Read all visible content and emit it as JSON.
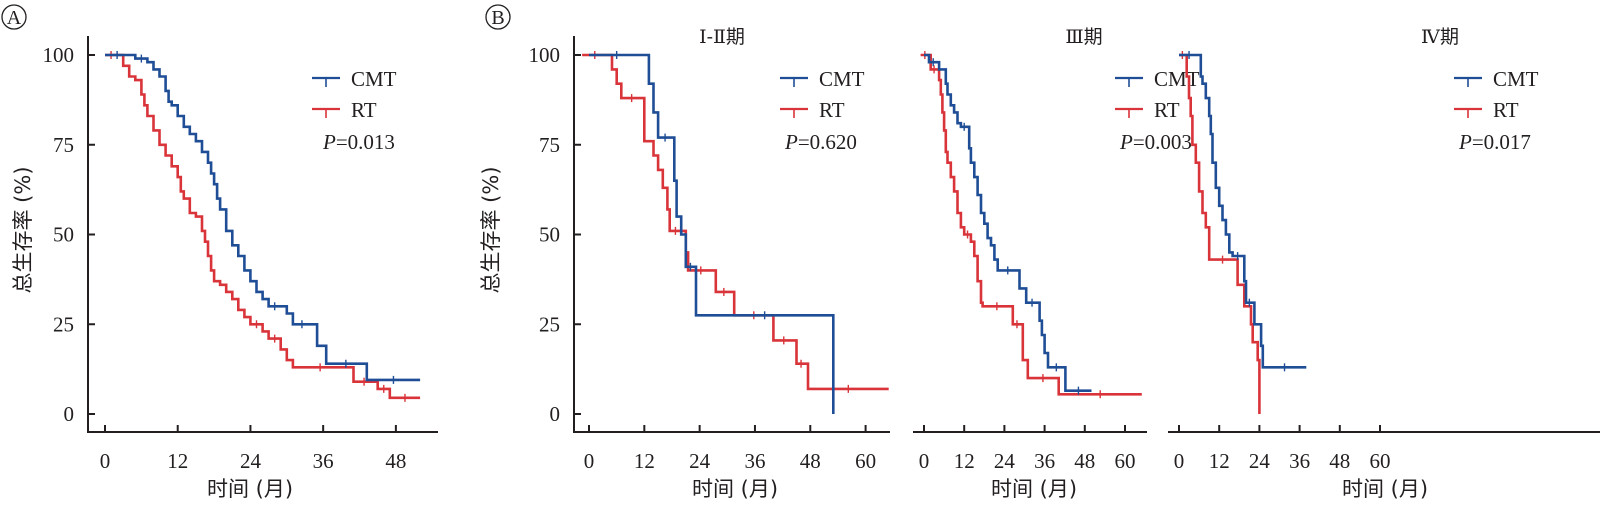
{
  "figure": {
    "panel_labels": [
      "A",
      "B"
    ]
  },
  "colors": {
    "CMT": "#1f4e96",
    "RT": "#d9343a",
    "axis": "#231f20"
  },
  "chart_data": [
    {
      "type": "line",
      "id": "A",
      "title": "",
      "xlabel": "时间 (月)",
      "ylabel": "总生存率 (%)",
      "xticks": [
        0,
        12,
        24,
        36,
        48
      ],
      "yticks": [
        0,
        25,
        50,
        75,
        100
      ],
      "xlim": [
        -1,
        54
      ],
      "ylim": [
        0,
        100
      ],
      "legend": [
        "CMT",
        "RT"
      ],
      "legend_position": "top-right",
      "annotation": {
        "prefix": "P",
        "text": "=0.013"
      },
      "series": [
        {
          "name": "CMT",
          "steps": [
            [
              0,
              100
            ],
            [
              4,
              100
            ],
            [
              5,
              99
            ],
            [
              7,
              98
            ],
            [
              8,
              96
            ],
            [
              9,
              94
            ],
            [
              10,
              90
            ],
            [
              10.5,
              87
            ],
            [
              11,
              86
            ],
            [
              12,
              83
            ],
            [
              13,
              80
            ],
            [
              14,
              78
            ],
            [
              15,
              76
            ],
            [
              16,
              73
            ],
            [
              17,
              70
            ],
            [
              17.5,
              67
            ],
            [
              18,
              64
            ],
            [
              18.5,
              60
            ],
            [
              19,
              57
            ],
            [
              20,
              51
            ],
            [
              21,
              47
            ],
            [
              22,
              44
            ],
            [
              23,
              40
            ],
            [
              24,
              37
            ],
            [
              25,
              34
            ],
            [
              26,
              32
            ],
            [
              27,
              30
            ],
            [
              29,
              30
            ],
            [
              30,
              28
            ],
            [
              31,
              25
            ],
            [
              34,
              25
            ],
            [
              35,
              19
            ],
            [
              36.5,
              14
            ],
            [
              43,
              14
            ],
            [
              43.2,
              9.5
            ],
            [
              52,
              9.5
            ]
          ]
        },
        {
          "name": "RT",
          "steps": [
            [
              0,
              100
            ],
            [
              2,
              100
            ],
            [
              3,
              97
            ],
            [
              4,
              94
            ],
            [
              5,
              93
            ],
            [
              6,
              89
            ],
            [
              6.5,
              86
            ],
            [
              7,
              83
            ],
            [
              8,
              79
            ],
            [
              9,
              75
            ],
            [
              10,
              72
            ],
            [
              11,
              69
            ],
            [
              12,
              66
            ],
            [
              12.5,
              62
            ],
            [
              13,
              60
            ],
            [
              14,
              56
            ],
            [
              15,
              55
            ],
            [
              16,
              51
            ],
            [
              16.5,
              48
            ],
            [
              17,
              44
            ],
            [
              17.5,
              40
            ],
            [
              18,
              37
            ],
            [
              19,
              36
            ],
            [
              20,
              34
            ],
            [
              21,
              32
            ],
            [
              22,
              29
            ],
            [
              23,
              27
            ],
            [
              24,
              25
            ],
            [
              26,
              23
            ],
            [
              27,
              21
            ],
            [
              29,
              18
            ],
            [
              30,
              15
            ],
            [
              31,
              13
            ],
            [
              40,
              13
            ],
            [
              41,
              9
            ],
            [
              44.5,
              9
            ],
            [
              45,
              7
            ],
            [
              47,
              4.5
            ],
            [
              52,
              4.5
            ]
          ]
        }
      ]
    },
    {
      "type": "line",
      "id": "B1",
      "title": "Ⅰ-Ⅱ期",
      "xlabel": "时间 (月)",
      "ylabel": "总生存率 (%)",
      "xticks": [
        0,
        12,
        24,
        36,
        48,
        60
      ],
      "yticks": [
        0,
        25,
        50,
        75,
        100
      ],
      "xlim": [
        -3,
        65
      ],
      "ylim": [
        0,
        100
      ],
      "legend": [
        "CMT",
        "RT"
      ],
      "legend_position": "top-right",
      "annotation": {
        "prefix": "P",
        "text": "=0.620"
      },
      "series": [
        {
          "name": "CMT",
          "steps": [
            [
              0,
              100
            ],
            [
              12,
              100
            ],
            [
              13,
              92
            ],
            [
              14,
              84
            ],
            [
              15,
              77
            ],
            [
              18,
              77
            ],
            [
              18.5,
              65
            ],
            [
              19,
              55
            ],
            [
              20,
              50
            ],
            [
              21,
              41
            ],
            [
              23,
              41
            ],
            [
              23.2,
              27.5
            ],
            [
              53,
              27.5
            ],
            [
              53,
              0
            ]
          ]
        },
        {
          "name": "RT",
          "steps": [
            [
              -1.5,
              100
            ],
            [
              4,
              100
            ],
            [
              5,
              96
            ],
            [
              6,
              92
            ],
            [
              7,
              88
            ],
            [
              11.5,
              88
            ],
            [
              12,
              76
            ],
            [
              13.5,
              76
            ],
            [
              14,
              72
            ],
            [
              15,
              68
            ],
            [
              16,
              63
            ],
            [
              17,
              57
            ],
            [
              17.5,
              51
            ],
            [
              20,
              51
            ],
            [
              21,
              45
            ],
            [
              21.5,
              40
            ],
            [
              27,
              40
            ],
            [
              27.5,
              34
            ],
            [
              31,
              34
            ],
            [
              31.5,
              27.5
            ],
            [
              40,
              27.5
            ],
            [
              40,
              20.5
            ],
            [
              44.5,
              20.5
            ],
            [
              45,
              14
            ],
            [
              47,
              14
            ],
            [
              47.5,
              7
            ],
            [
              65,
              7
            ]
          ]
        }
      ]
    },
    {
      "type": "line",
      "id": "B2",
      "title": "Ⅲ期",
      "xlabel": "时间 (月)",
      "ylabel": "",
      "xticks": [
        0,
        12,
        24,
        36,
        48,
        60
      ],
      "yticks": [],
      "xlim": [
        -3,
        65
      ],
      "ylim": [
        0,
        100
      ],
      "legend": [
        "CMT",
        "RT"
      ],
      "legend_position": "top-right",
      "annotation": {
        "prefix": "P",
        "text": "=0.003"
      },
      "series": [
        {
          "name": "CMT",
          "steps": [
            [
              0,
              100
            ],
            [
              1,
              100
            ],
            [
              1.5,
              98
            ],
            [
              4,
              98
            ],
            [
              4.5,
              96
            ],
            [
              6,
              96
            ],
            [
              6.5,
              92
            ],
            [
              7,
              89
            ],
            [
              8,
              86
            ],
            [
              9,
              84
            ],
            [
              10,
              81
            ],
            [
              11,
              80
            ],
            [
              13,
              80
            ],
            [
              13.5,
              74
            ],
            [
              14,
              70
            ],
            [
              15,
              66
            ],
            [
              16,
              61
            ],
            [
              17,
              56
            ],
            [
              18,
              53
            ],
            [
              19,
              49
            ],
            [
              20,
              47
            ],
            [
              21,
              43
            ],
            [
              22,
              40
            ],
            [
              28,
              40
            ],
            [
              28.5,
              35
            ],
            [
              30,
              35
            ],
            [
              30.5,
              31
            ],
            [
              34,
              31
            ],
            [
              34.5,
              26
            ],
            [
              35.2,
              22
            ],
            [
              36,
              17
            ],
            [
              37,
              13
            ],
            [
              42,
              13
            ],
            [
              42.2,
              6.5
            ],
            [
              50,
              6.5
            ]
          ]
        },
        {
          "name": "RT",
          "steps": [
            [
              -1,
              100
            ],
            [
              1.5,
              100
            ],
            [
              2,
              96
            ],
            [
              4,
              96
            ],
            [
              4.5,
              93
            ],
            [
              5,
              89
            ],
            [
              5.5,
              84
            ],
            [
              6,
              79
            ],
            [
              6.5,
              73
            ],
            [
              7,
              70
            ],
            [
              8,
              66
            ],
            [
              9,
              62
            ],
            [
              10,
              56
            ],
            [
              11,
              52
            ],
            [
              12,
              50
            ],
            [
              14,
              48
            ],
            [
              15,
              44
            ],
            [
              16,
              37
            ],
            [
              17,
              31
            ],
            [
              17.5,
              30
            ],
            [
              26,
              30
            ],
            [
              26.5,
              25
            ],
            [
              29,
              25
            ],
            [
              29.5,
              15
            ],
            [
              31,
              10
            ],
            [
              40,
              10
            ],
            [
              40.2,
              5.5
            ],
            [
              65,
              5.5
            ]
          ]
        }
      ]
    },
    {
      "type": "line",
      "id": "B3",
      "title": "Ⅳ期",
      "xlabel": "时间 (月)",
      "ylabel": "",
      "xticks": [
        0,
        12,
        24,
        36,
        48,
        60
      ],
      "yticks": [],
      "xlim": [
        -3,
        65
      ],
      "ylim": [
        0,
        100
      ],
      "legend": [
        "CMT",
        "RT"
      ],
      "legend_position": "top-right",
      "annotation": {
        "prefix": "P",
        "text": "=0.017"
      },
      "series": [
        {
          "name": "CMT",
          "steps": [
            [
              0,
              100
            ],
            [
              6,
              100
            ],
            [
              6.5,
              94
            ],
            [
              7,
              92
            ],
            [
              8,
              88
            ],
            [
              9,
              83
            ],
            [
              9.5,
              78
            ],
            [
              10,
              70
            ],
            [
              11,
              63
            ],
            [
              12,
              58
            ],
            [
              13,
              54
            ],
            [
              14,
              50
            ],
            [
              15,
              45
            ],
            [
              16,
              44
            ],
            [
              19,
              44
            ],
            [
              19.5,
              37
            ],
            [
              20,
              31
            ],
            [
              22,
              31
            ],
            [
              22.5,
              25
            ],
            [
              24,
              25
            ],
            [
              24.5,
              19
            ],
            [
              25,
              13
            ],
            [
              38,
              13
            ]
          ]
        },
        {
          "name": "RT",
          "steps": [
            [
              0,
              100
            ],
            [
              2,
              100
            ],
            [
              2.3,
              94
            ],
            [
              3,
              88
            ],
            [
              3.5,
              83
            ],
            [
              4,
              75
            ],
            [
              5,
              70
            ],
            [
              6,
              62
            ],
            [
              7,
              56
            ],
            [
              8,
              52
            ],
            [
              9,
              43
            ],
            [
              17,
              43
            ],
            [
              17.5,
              36
            ],
            [
              19,
              36
            ],
            [
              19.5,
              30
            ],
            [
              21,
              30
            ],
            [
              21.5,
              25
            ],
            [
              22,
              20
            ],
            [
              23,
              20
            ],
            [
              23.5,
              15
            ],
            [
              24,
              0
            ]
          ]
        }
      ]
    }
  ]
}
